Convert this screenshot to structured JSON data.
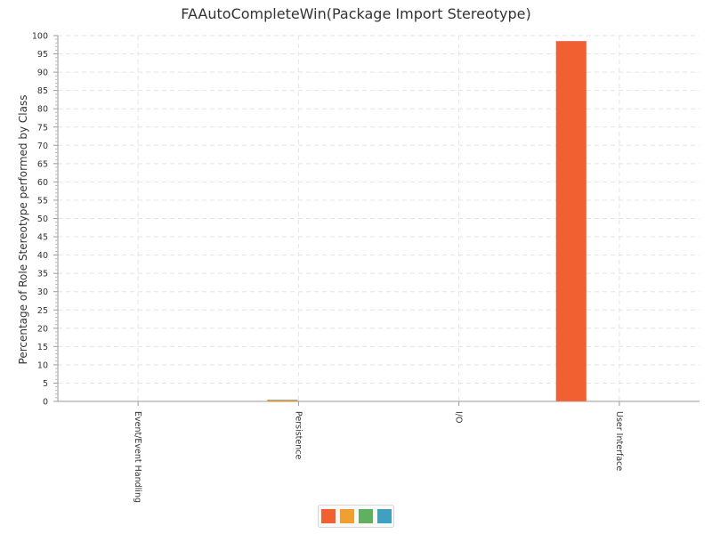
{
  "chart_data": {
    "type": "bar",
    "title": "FAAutoCompleteWin(Package Import Stereotype)",
    "xlabel": "",
    "ylabel": "Percentage of Role Stereotype performed by Class",
    "ylim": [
      0,
      100
    ],
    "y_major_ticks": [
      "0",
      "5",
      "10",
      "15",
      "20",
      "25",
      "30",
      "35",
      "40",
      "45",
      "50",
      "55",
      "60",
      "65",
      "70",
      "75",
      "80",
      "85",
      "90",
      "95",
      "100"
    ],
    "categories": [
      "Event/Event Handling",
      "Persistence",
      "I/O",
      "User Interface"
    ],
    "series": [
      {
        "color": "#f06030",
        "values": [
          0,
          0,
          0,
          98.5
        ]
      },
      {
        "color": "#f0a030",
        "values": [
          0,
          0.5,
          0,
          0
        ]
      },
      {
        "color": "#60b060",
        "values": [
          0,
          0,
          0,
          0
        ]
      },
      {
        "color": "#40a0c0",
        "values": [
          0,
          0,
          0,
          0
        ]
      }
    ],
    "grid": true,
    "legend_position": "bottom-center"
  }
}
